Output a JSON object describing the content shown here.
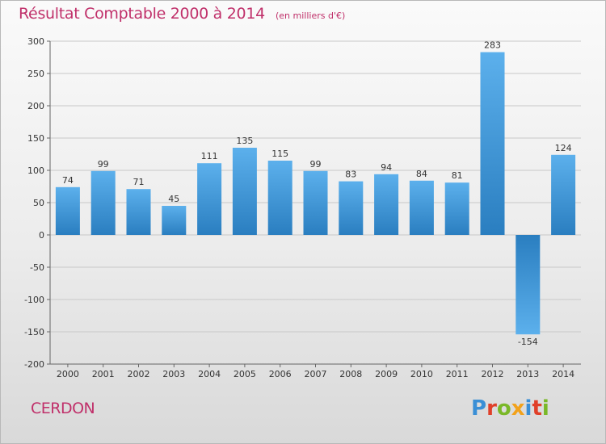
{
  "header": {
    "title": "Résultat Comptable 2000 à 2014",
    "subtitle": "(en milliers d'€)"
  },
  "footer": {
    "place": "CERDON",
    "logo_text": "Proxiti"
  },
  "colors": {
    "title": "#c0306a",
    "bar_light": "#5cb0ec",
    "bar_dark": "#2a7ec0",
    "grid": "#c8c8c8",
    "logo_letters": [
      "#3a8fd6",
      "#e0402a",
      "#7ab828",
      "#f2a21b",
      "#3a8fd6",
      "#e0402a",
      "#7ab828"
    ]
  },
  "chart_data": {
    "type": "bar",
    "categories": [
      "2000",
      "2001",
      "2002",
      "2003",
      "2004",
      "2005",
      "2006",
      "2007",
      "2008",
      "2009",
      "2010",
      "2011",
      "2012",
      "2013",
      "2014"
    ],
    "values": [
      74,
      99,
      71,
      45,
      111,
      135,
      115,
      99,
      83,
      94,
      84,
      81,
      283,
      -154,
      124
    ],
    "data_labels": [
      "74",
      "99",
      "71",
      "45",
      "111",
      "135",
      "115",
      "99",
      "83",
      "94",
      "84",
      "81",
      "283",
      "-154",
      "124"
    ],
    "yticks": [
      300,
      250,
      200,
      150,
      100,
      50,
      0,
      -50,
      -100,
      -150,
      -200
    ],
    "ytick_labels": [
      "300",
      "250",
      "200",
      "150",
      "100",
      "50",
      "0",
      "-50",
      "-100",
      "-150",
      "-200"
    ],
    "ylim": [
      -200,
      300
    ],
    "grid": true,
    "legend": "none"
  }
}
